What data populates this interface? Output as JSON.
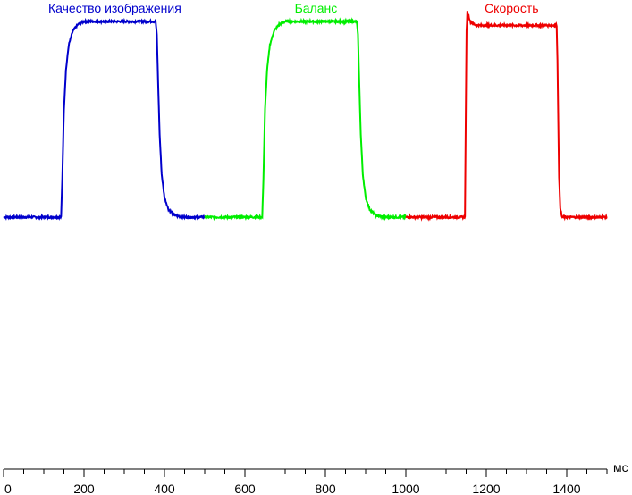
{
  "chart_data": {
    "type": "line",
    "title": "",
    "xlabel": "",
    "ylabel": "",
    "x_unit": "мс",
    "xlim": [
      0,
      1500
    ],
    "ylim": [
      0,
      1
    ],
    "x_ticks": [
      0,
      200,
      400,
      600,
      800,
      1000,
      1200,
      1400
    ],
    "x_minor_step": 50,
    "grid": false,
    "legend": "labels above each series",
    "series": [
      {
        "name": "Качество изображения",
        "color": "#0000cc",
        "x_range": [
          0,
          500
        ],
        "baseline": 0.0,
        "rise_time": 145,
        "fall_time": 380,
        "points": [
          [
            0,
            0.0
          ],
          [
            143,
            0.0
          ],
          [
            146,
            0.2
          ],
          [
            150,
            0.55
          ],
          [
            155,
            0.75
          ],
          [
            162,
            0.88
          ],
          [
            172,
            0.95
          ],
          [
            185,
            0.985
          ],
          [
            200,
            1.0
          ],
          [
            378,
            1.0
          ],
          [
            381,
            0.93
          ],
          [
            384,
            0.7
          ],
          [
            388,
            0.42
          ],
          [
            393,
            0.22
          ],
          [
            400,
            0.1
          ],
          [
            410,
            0.04
          ],
          [
            425,
            0.01
          ],
          [
            445,
            0.0
          ],
          [
            500,
            0.0
          ]
        ]
      },
      {
        "name": "Баланс",
        "color": "#00ee00",
        "x_range": [
          500,
          1000
        ],
        "baseline": 0.0,
        "points": [
          [
            500,
            0.0
          ],
          [
            643,
            0.0
          ],
          [
            646,
            0.2
          ],
          [
            650,
            0.55
          ],
          [
            655,
            0.75
          ],
          [
            662,
            0.88
          ],
          [
            672,
            0.95
          ],
          [
            685,
            0.985
          ],
          [
            700,
            1.0
          ],
          [
            878,
            1.0
          ],
          [
            881,
            0.93
          ],
          [
            884,
            0.7
          ],
          [
            888,
            0.42
          ],
          [
            893,
            0.22
          ],
          [
            900,
            0.1
          ],
          [
            910,
            0.04
          ],
          [
            925,
            0.01
          ],
          [
            945,
            0.0
          ],
          [
            1000,
            0.0
          ]
        ]
      },
      {
        "name": "Скорость",
        "color": "#ee0000",
        "x_range": [
          1000,
          1500
        ],
        "baseline": 0.0,
        "points": [
          [
            1000,
            0.0
          ],
          [
            1147,
            0.0
          ],
          [
            1149,
            0.5
          ],
          [
            1151,
            0.95
          ],
          [
            1153,
            1.05
          ],
          [
            1156,
            1.03
          ],
          [
            1160,
            1.0
          ],
          [
            1166,
            0.99
          ],
          [
            1175,
            0.98
          ],
          [
            1375,
            0.98
          ],
          [
            1377,
            0.8
          ],
          [
            1379,
            0.5
          ],
          [
            1381,
            0.2
          ],
          [
            1384,
            0.05
          ],
          [
            1388,
            0.0
          ],
          [
            1500,
            0.0
          ]
        ]
      }
    ]
  }
}
